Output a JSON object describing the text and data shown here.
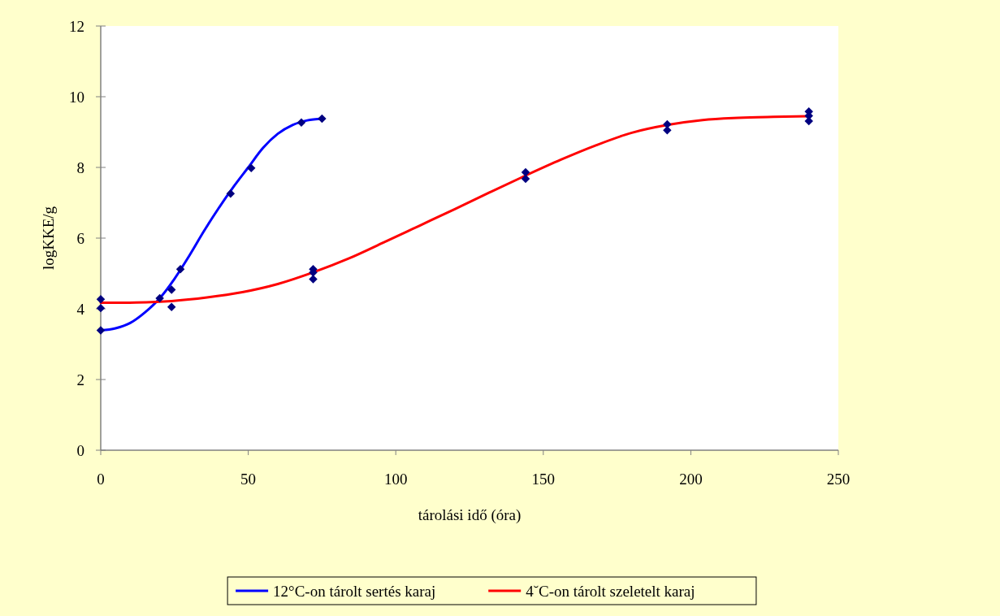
{
  "chart_data": {
    "type": "line",
    "xlabel": "tárolási idő (óra)",
    "ylabel": "logKKE/g",
    "xlim": [
      0,
      250
    ],
    "xticks": [
      0,
      50,
      100,
      150,
      200,
      250
    ],
    "ylim": [
      0,
      12
    ],
    "yticks": [
      0,
      2,
      4,
      6,
      8,
      10,
      12
    ],
    "grid": false,
    "legend": "bottom",
    "marker": "none",
    "line_style": "solid",
    "series": [
      {
        "name": "12°C-on tárolt sertés karaj",
        "color": "#0000ff",
        "x": [
          0,
          5,
          10,
          15,
          20,
          25,
          30,
          35,
          40,
          45,
          50,
          55,
          60,
          65,
          70,
          75
        ],
        "values": [
          3.39,
          3.45,
          3.6,
          3.9,
          4.3,
          4.85,
          5.5,
          6.2,
          6.85,
          7.45,
          8.0,
          8.55,
          8.95,
          9.2,
          9.33,
          9.38
        ]
      },
      {
        "name": "4˘C-on tárolt szeletelt karaj",
        "color": "#ff0000",
        "x": [
          0,
          12,
          24,
          36,
          48,
          60,
          72,
          84,
          96,
          108,
          120,
          132,
          144,
          156,
          168,
          180,
          192,
          204,
          216,
          228,
          240
        ],
        "values": [
          4.17,
          4.18,
          4.22,
          4.32,
          4.47,
          4.7,
          5.03,
          5.42,
          5.88,
          6.35,
          6.82,
          7.3,
          7.77,
          8.22,
          8.63,
          8.98,
          9.2,
          9.34,
          9.4,
          9.43,
          9.45
        ]
      },
      {
        "type": "scatter",
        "marker": "diamond",
        "color": "#000080",
        "x": [
          0,
          0,
          0,
          20,
          24,
          24,
          27,
          44,
          51,
          68,
          75,
          72,
          72,
          72,
          144,
          144,
          192,
          192,
          240,
          240,
          240
        ],
        "values": [
          3.39,
          4.27,
          4.02,
          4.3,
          4.54,
          4.05,
          5.12,
          7.26,
          7.98,
          9.27,
          9.38,
          5.12,
          5.03,
          4.84,
          7.86,
          7.68,
          9.22,
          9.05,
          9.58,
          9.46,
          9.31
        ]
      }
    ]
  }
}
